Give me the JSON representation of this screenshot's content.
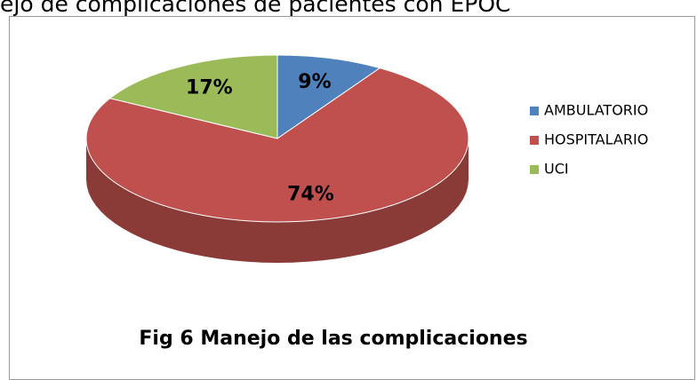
{
  "heading": "ejo de complicaciones de pacientes con EPOC",
  "chart_data": {
    "type": "pie",
    "title": "Fig 6 Manejo de las complicaciones",
    "categories": [
      "AMBULATORIO",
      "HOSPITALARIO",
      "UCI"
    ],
    "values": [
      9,
      74,
      17
    ],
    "value_labels": [
      "9%",
      "74%",
      "17%"
    ],
    "colors": [
      "#4f81bd",
      "#c0504d",
      "#9bbb59"
    ],
    "legend": "right"
  }
}
